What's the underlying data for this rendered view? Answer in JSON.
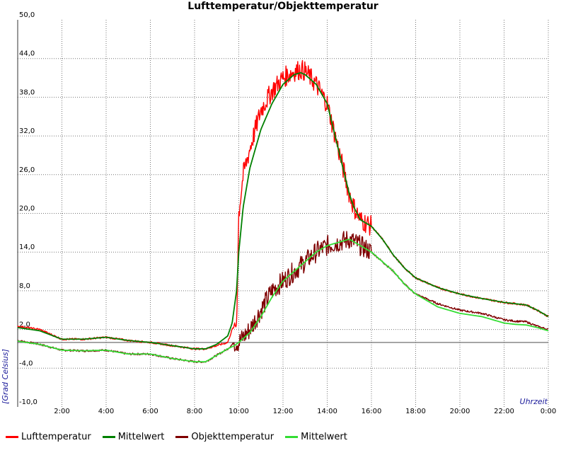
{
  "chart_data": {
    "type": "line",
    "title": "Lufttemperatur/Objekttemperatur",
    "xlabel": "Uhrzeit",
    "ylabel": "[Grad Celsius]",
    "xlim": [
      0,
      24
    ],
    "ylim": [
      -10,
      50
    ],
    "x_tick_labels": [
      "2:00",
      "4:00",
      "6:00",
      "8:00",
      "10:00",
      "12:00",
      "14:00",
      "16:00",
      "18:00",
      "20:00",
      "22:00",
      "0:00"
    ],
    "y_tick_labels": [
      "-10,0",
      "-4,0",
      "2,0",
      "8,0",
      "14,0",
      "20,0",
      "26,0",
      "32,0",
      "38,0",
      "44,0",
      "50,0"
    ],
    "grid": true,
    "legend_position": "bottom",
    "series": [
      {
        "name": "Lufttemperatur",
        "color": "#ff0000",
        "noisy": true,
        "x": [
          0,
          1,
          2,
          3,
          4,
          5,
          6,
          7,
          8,
          8.5,
          9,
          9.5,
          9.7,
          9.9,
          10,
          10.2,
          10.5,
          11,
          11.5,
          12,
          12.5,
          12.8,
          13,
          13.5,
          14,
          14.5,
          15,
          15.2,
          15.5,
          16,
          16.5,
          17,
          17.5,
          18,
          19,
          20,
          21,
          22,
          22.5,
          23,
          23.5,
          24
        ],
        "y": [
          2.5,
          2.0,
          0.5,
          0.5,
          0.8,
          0.3,
          0.0,
          -0.5,
          -1.0,
          -1.0,
          -0.5,
          0.0,
          2.0,
          3.0,
          20.0,
          26.0,
          30.0,
          36.0,
          39.0,
          41.0,
          42.0,
          42.3,
          42.0,
          40.0,
          37.0,
          30.0,
          23.0,
          21.0,
          19.0,
          18.0,
          16.0,
          13.5,
          11.5,
          10.0,
          8.5,
          7.5,
          6.8,
          6.2,
          6.0,
          5.8,
          5.0,
          4.0
        ]
      },
      {
        "name": "Mittelwert",
        "color": "#008000",
        "noisy": false,
        "x": [
          0,
          1,
          2,
          3,
          4,
          5,
          6,
          7,
          8,
          8.5,
          9,
          9.5,
          9.7,
          9.9,
          10,
          10.2,
          10.5,
          11,
          11.5,
          12,
          12.5,
          12.8,
          13,
          13.5,
          14,
          14.5,
          15,
          15.2,
          15.5,
          16,
          16.5,
          17,
          17.5,
          18,
          19,
          20,
          21,
          22,
          22.5,
          23,
          23.5,
          24
        ],
        "y": [
          2.3,
          1.8,
          0.5,
          0.5,
          0.8,
          0.3,
          0.0,
          -0.5,
          -1.0,
          -1.0,
          -0.3,
          1.0,
          3.0,
          8.0,
          14.0,
          21.0,
          27.0,
          33.0,
          37.0,
          40.0,
          41.5,
          41.8,
          41.5,
          40.0,
          37.0,
          30.0,
          23.0,
          21.0,
          19.0,
          18.0,
          16.0,
          13.5,
          11.5,
          10.0,
          8.5,
          7.5,
          6.8,
          6.2,
          6.0,
          5.8,
          5.0,
          4.0
        ]
      },
      {
        "name": "Objekttemperatur",
        "color": "#7f0000",
        "noisy": true,
        "x": [
          0,
          1,
          2,
          3,
          4,
          5,
          6,
          7,
          8,
          8.5,
          9,
          9.5,
          9.8,
          10,
          10.5,
          11,
          11.5,
          12,
          12.5,
          13,
          13.5,
          14,
          14.5,
          15,
          15.5,
          16,
          16.5,
          17,
          17.5,
          18,
          19,
          20,
          21,
          22,
          22.5,
          23,
          23.5,
          24
        ],
        "y": [
          0.3,
          -0.3,
          -1.2,
          -1.3,
          -1.2,
          -1.8,
          -1.8,
          -2.5,
          -3.0,
          -3.0,
          -2.0,
          -1.0,
          0.0,
          0.0,
          2.0,
          5.0,
          8.0,
          9.5,
          11.0,
          12.5,
          14.0,
          15.0,
          15.5,
          16.0,
          15.0,
          14.0,
          12.5,
          11.0,
          9.0,
          7.5,
          6.0,
          5.0,
          4.5,
          3.5,
          3.3,
          3.2,
          2.5,
          2.0
        ]
      },
      {
        "name": "Mittelwert",
        "color": "#33dd33",
        "noisy": false,
        "x": [
          0,
          1,
          2,
          3,
          4,
          5,
          6,
          7,
          8,
          8.5,
          9,
          9.5,
          9.8,
          10,
          10.5,
          11,
          11.5,
          12,
          12.5,
          13,
          13.5,
          14,
          14.5,
          15,
          15.5,
          16,
          16.5,
          17,
          17.5,
          18,
          19,
          20,
          21,
          22,
          22.5,
          23,
          23.5,
          24
        ],
        "y": [
          0.2,
          -0.3,
          -1.2,
          -1.3,
          -1.2,
          -1.8,
          -1.8,
          -2.5,
          -3.0,
          -3.0,
          -2.0,
          -1.0,
          -0.5,
          0.0,
          1.5,
          4.0,
          7.0,
          9.5,
          11.0,
          12.5,
          14.0,
          15.0,
          15.5,
          16.0,
          15.0,
          14.0,
          12.5,
          11.0,
          9.0,
          7.5,
          5.5,
          4.5,
          4.0,
          3.0,
          2.8,
          2.7,
          2.3,
          1.8
        ]
      }
    ]
  }
}
